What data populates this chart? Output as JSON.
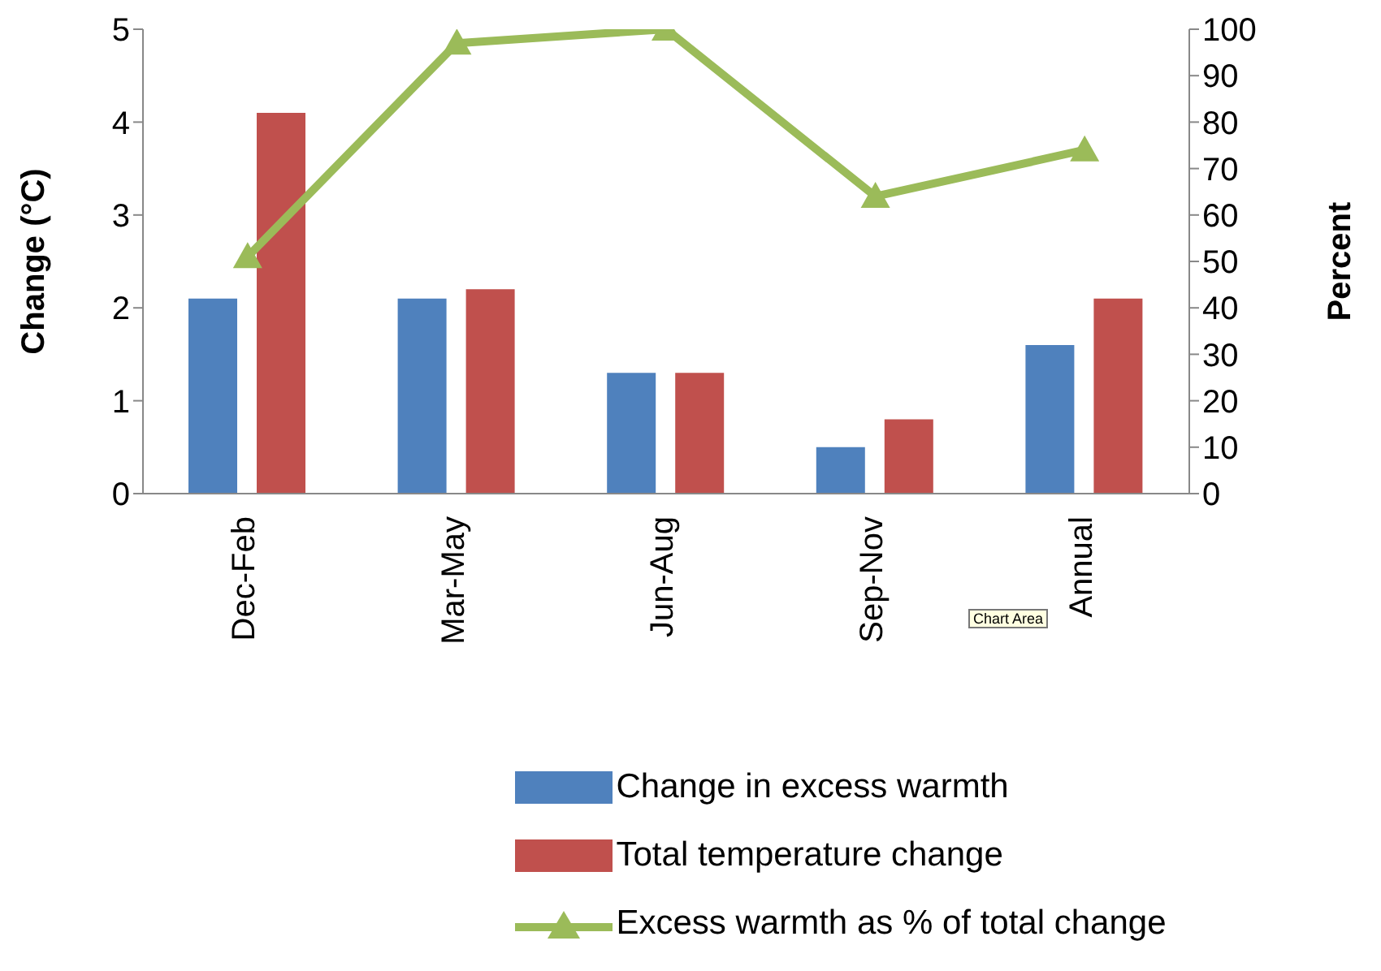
{
  "chart_data": {
    "type": "bar",
    "ylabel": "Change (°C)",
    "y2label": "Percent",
    "categories": [
      "Dec-Feb",
      "Mar-May",
      "Jun-Aug",
      "Sep-Nov",
      "Annual"
    ],
    "series": [
      {
        "name": "Change in excess warmth",
        "color": "#4f81bd",
        "values": [
          2.1,
          2.1,
          1.3,
          0.5,
          1.6
        ]
      },
      {
        "name": "Total temperature change",
        "color": "#c0504d",
        "values": [
          4.1,
          2.2,
          1.3,
          0.8,
          2.1
        ]
      },
      {
        "name": "Excess warmth as % of total change",
        "type": "line",
        "axis": "y2",
        "color": "#9bbb59",
        "marker": "triangle",
        "values": [
          51,
          97,
          100,
          64,
          74
        ]
      }
    ],
    "ylim": [
      0,
      5
    ],
    "yticks": [
      0,
      1,
      2,
      3,
      4,
      5
    ],
    "y2lim": [
      0,
      100
    ],
    "y2ticks": [
      0,
      10,
      20,
      30,
      40,
      50,
      60,
      70,
      80,
      90,
      100
    ],
    "legend": "bottom",
    "annotations": [
      "Chart Area"
    ]
  }
}
